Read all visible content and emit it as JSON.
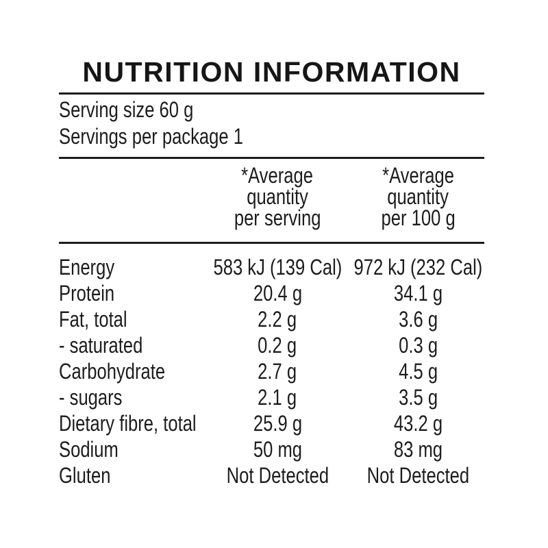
{
  "title": "NUTRITION INFORMATION",
  "serving": {
    "size_line": "Serving size 60 g",
    "package_line": "Servings per package 1"
  },
  "columns": {
    "serving": {
      "l1": "*Average",
      "l2": "quantity",
      "l3": "per serving"
    },
    "per100": {
      "l1": "*Average",
      "l2": "quantity",
      "l3": "per 100 g"
    }
  },
  "rows": [
    {
      "label": "Energy",
      "serving": "583 kJ (139 Cal)",
      "per100": "972 kJ (232 Cal)"
    },
    {
      "label": "Protein",
      "serving": "20.4 g",
      "per100": "34.1 g"
    },
    {
      "label": "Fat, total",
      "serving": "2.2 g",
      "per100": "3.6 g"
    },
    {
      "label": "- saturated",
      "serving": "0.2 g",
      "per100": "0.3 g"
    },
    {
      "label": "Carbohydrate",
      "serving": "2.7 g",
      "per100": "4.5 g"
    },
    {
      "label": "- sugars",
      "serving": "2.1 g",
      "per100": "3.5 g"
    },
    {
      "label": "Dietary fibre, total",
      "serving": "25.9 g",
      "per100": "43.2 g"
    },
    {
      "label": "Sodium",
      "serving": "50 mg",
      "per100": "83 mg"
    },
    {
      "label": "Gluten",
      "serving": "Not Detected",
      "per100": "Not Detected"
    }
  ],
  "colors": {
    "text": "#1c1c1c",
    "rule": "#1c1c1c",
    "background": "#ffffff"
  }
}
